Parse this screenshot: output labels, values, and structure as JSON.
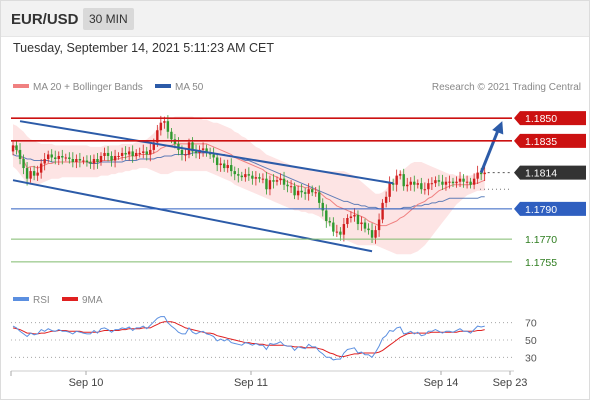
{
  "header": {
    "symbol": "EUR/USD",
    "timeframe": "30 MIN"
  },
  "timestamp": "Tuesday, September 14, 2021 5:11:23 AM CET",
  "legend": {
    "ma20": "MA 20 + Bollinger Bands",
    "ma50": "MA 50",
    "credit": "Research © 2021 Trading Central",
    "rsi": "RSI",
    "rsi_ma": "9MA"
  },
  "colors": {
    "ma20": "#f08080",
    "ma50": "#2c5ba8",
    "bollinger_fill": "#fde4e4",
    "candle_up": "#d11f1f",
    "candle_down": "#2f9a2f",
    "resistance": "#cc1111",
    "support_blue": "#2f5fc0",
    "support_green": "#7fba6c",
    "current": "#333333",
    "arrow": "#2c5ba8",
    "rsi": "#5b8fe0",
    "rsi_ma": "#e02020"
  },
  "chart_data": [
    {
      "type": "candlestick",
      "ylim": [
        1.1745,
        1.1862
      ],
      "levels": [
        {
          "value": 1.185,
          "label": "1.1850",
          "kind": "resistance"
        },
        {
          "value": 1.1835,
          "label": "1.1835",
          "kind": "resistance"
        },
        {
          "value": 1.1814,
          "label": "1.1814",
          "kind": "current"
        },
        {
          "value": 1.179,
          "label": "1.1790",
          "kind": "support"
        },
        {
          "value": 1.177,
          "label": "1.1770",
          "kind": "support-minor"
        },
        {
          "value": 1.1755,
          "label": "1.1755",
          "kind": "support-minor"
        }
      ],
      "x_ticks": [
        "Sep 10",
        "Sep 11",
        "Sep 14",
        "Sep 23"
      ],
      "closes": [
        1.1832,
        1.1829,
        1.1823,
        1.1817,
        1.181,
        1.1815,
        1.1812,
        1.1814,
        1.182,
        1.1823,
        1.1826,
        1.1824,
        1.1823,
        1.1825,
        1.1824,
        1.1824,
        1.1823,
        1.1821,
        1.1823,
        1.1822,
        1.1822,
        1.1821,
        1.182,
        1.1823,
        1.1821,
        1.1825,
        1.1827,
        1.1825,
        1.1822,
        1.1825,
        1.1825,
        1.1827,
        1.1826,
        1.1828,
        1.1825,
        1.1827,
        1.1827,
        1.1828,
        1.1826,
        1.1829,
        1.1834,
        1.1842,
        1.1847,
        1.1848,
        1.1841,
        1.1836,
        1.1833,
        1.1829,
        1.1826,
        1.1826,
        1.1834,
        1.1828,
        1.1827,
        1.1829,
        1.183,
        1.1827,
        1.1826,
        1.1824,
        1.1819,
        1.182,
        1.1817,
        1.1819,
        1.1815,
        1.1813,
        1.1812,
        1.1811,
        1.1813,
        1.1812,
        1.181,
        1.1811,
        1.181,
        1.181,
        1.1803,
        1.1809,
        1.1808,
        1.1809,
        1.181,
        1.1806,
        1.1805,
        1.1805,
        1.1799,
        1.1802,
        1.1801,
        1.18,
        1.1803,
        1.1801,
        1.1801,
        1.1794,
        1.1789,
        1.1782,
        1.1781,
        1.1775,
        1.1775,
        1.1773,
        1.178,
        1.1784,
        1.1785,
        1.1786,
        1.178,
        1.1781,
        1.1777,
        1.1776,
        1.1771,
        1.1776,
        1.1783,
        1.1794,
        1.1798,
        1.1807,
        1.1806,
        1.1812,
        1.1813,
        1.1805,
        1.1806,
        1.1808,
        1.1806,
        1.1807,
        1.1803,
        1.1803,
        1.1807,
        1.1807,
        1.1809,
        1.1808,
        1.1806,
        1.1808,
        1.1808,
        1.1807,
        1.1808,
        1.181,
        1.1808,
        1.1808,
        1.1806,
        1.181,
        1.1814,
        1.1813,
        1.1814
      ],
      "ma20": [
        1.1832,
        1.183,
        1.1826,
        1.1822,
        1.1817,
        1.1818,
        1.1818,
        1.1817,
        1.1818,
        1.1819,
        1.182,
        1.182,
        1.1821,
        1.1821,
        1.1821,
        1.1821,
        1.1821,
        1.1821,
        1.1821,
        1.1821,
        1.1821,
        1.1821,
        1.1821,
        1.1821,
        1.1821,
        1.1822,
        1.1822,
        1.1822,
        1.1822,
        1.1823,
        1.1823,
        1.1824,
        1.1824,
        1.1825,
        1.1825,
        1.1825,
        1.1826,
        1.1826,
        1.1826,
        1.1826,
        1.1827,
        1.1828,
        1.183,
        1.1831,
        1.1832,
        1.1832,
        1.1833,
        1.1833,
        1.1833,
        1.1833,
        1.1833,
        1.1833,
        1.1833,
        1.1833,
        1.1833,
        1.1833,
        1.1832,
        1.1831,
        1.183,
        1.1829,
        1.1828,
        1.1827,
        1.1826,
        1.1824,
        1.1823,
        1.1822,
        1.1821,
        1.182,
        1.1819,
        1.1818,
        1.1817,
        1.1816,
        1.1814,
        1.1813,
        1.1812,
        1.1811,
        1.181,
        1.1809,
        1.1808,
        1.1807,
        1.1806,
        1.1805,
        1.1805,
        1.1804,
        1.1804,
        1.1803,
        1.1803,
        1.1801,
        1.1799,
        1.1797,
        1.1796,
        1.1794,
        1.1792,
        1.1791,
        1.179,
        1.1789,
        1.1788,
        1.1787,
        1.1786,
        1.1785,
        1.1784,
        1.1782,
        1.1781,
        1.178,
        1.1779,
        1.1779,
        1.1779,
        1.178,
        1.1781,
        1.1782,
        1.1784,
        1.1785,
        1.1787,
        1.1789,
        1.1791,
        1.1793,
        1.1794,
        1.1795,
        1.1797,
        1.1798,
        1.18,
        1.1802,
        1.1803,
        1.1804,
        1.1805,
        1.1806,
        1.1806,
        1.1806,
        1.1806,
        1.1806,
        1.1806,
        1.1807,
        1.1807,
        1.1808,
        1.1809
      ],
      "ma50": [
        1.1826,
        1.1825,
        1.1825,
        1.1824,
        1.1823,
        1.1823,
        1.1822,
        1.1822,
        1.1822,
        1.1822,
        1.1822,
        1.1821,
        1.1821,
        1.1821,
        1.1821,
        1.1821,
        1.1821,
        1.1821,
        1.1821,
        1.1821,
        1.1821,
        1.1821,
        1.182,
        1.182,
        1.182,
        1.1821,
        1.1821,
        1.1821,
        1.1821,
        1.1821,
        1.1821,
        1.1821,
        1.1822,
        1.1822,
        1.1822,
        1.1822,
        1.1823,
        1.1823,
        1.1823,
        1.1823,
        1.1823,
        1.1824,
        1.1824,
        1.1825,
        1.1825,
        1.1825,
        1.1826,
        1.1826,
        1.1826,
        1.1826,
        1.1826,
        1.1827,
        1.1827,
        1.1827,
        1.1827,
        1.1827,
        1.1827,
        1.1827,
        1.1826,
        1.1826,
        1.1826,
        1.1825,
        1.1825,
        1.1824,
        1.1824,
        1.1823,
        1.1822,
        1.1822,
        1.1821,
        1.182,
        1.1819,
        1.1818,
        1.1817,
        1.1816,
        1.1815,
        1.1814,
        1.1813,
        1.1812,
        1.1811,
        1.181,
        1.1809,
        1.1808,
        1.1807,
        1.1806,
        1.1805,
        1.1804,
        1.1803,
        1.1802,
        1.1801,
        1.18,
        1.1799,
        1.1798,
        1.1797,
        1.1796,
        1.1795,
        1.1795,
        1.1794,
        1.1793,
        1.1793,
        1.1792,
        1.1792,
        1.1791,
        1.1791,
        1.1791,
        1.179,
        1.179,
        1.179,
        1.179,
        1.179,
        1.179,
        1.179,
        1.1791,
        1.1791,
        1.1791,
        1.1792,
        1.1792,
        1.1792,
        1.1793,
        1.1793,
        1.1794,
        1.1794,
        1.1795,
        1.1795,
        1.1796,
        1.1797,
        1.1797,
        1.1797,
        1.1797,
        1.1797,
        1.1797,
        1.1797,
        1.1797,
        1.1797,
        1.1798,
        1.1798
      ],
      "bollinger_upper": [
        1.1846,
        1.1845,
        1.1843,
        1.1841,
        1.1838,
        1.1836,
        1.1835,
        1.1834,
        1.1833,
        1.1833,
        1.1833,
        1.1833,
        1.1832,
        1.1832,
        1.1832,
        1.1832,
        1.1832,
        1.1832,
        1.1832,
        1.1832,
        1.1832,
        1.1832,
        1.1831,
        1.1831,
        1.1831,
        1.1831,
        1.1832,
        1.1832,
        1.1832,
        1.1832,
        1.1832,
        1.1833,
        1.1833,
        1.1833,
        1.1833,
        1.1834,
        1.1834,
        1.1835,
        1.1836,
        1.1838,
        1.184,
        1.1843,
        1.1846,
        1.1848,
        1.1849,
        1.185,
        1.1851,
        1.1851,
        1.1851,
        1.1851,
        1.1851,
        1.1851,
        1.185,
        1.185,
        1.1849,
        1.1849,
        1.1848,
        1.1847,
        1.1847,
        1.1846,
        1.1845,
        1.1844,
        1.1843,
        1.1841,
        1.184,
        1.1838,
        1.1837,
        1.1835,
        1.1833,
        1.1831,
        1.183,
        1.1828,
        1.1826,
        1.1825,
        1.1824,
        1.1823,
        1.1822,
        1.1821,
        1.182,
        1.1819,
        1.1818,
        1.1817,
        1.1817,
        1.1816,
        1.1816,
        1.1815,
        1.1815,
        1.1815,
        1.1815,
        1.1815,
        1.1815,
        1.1815,
        1.1815,
        1.1815,
        1.1815,
        1.1814,
        1.1813,
        1.1812,
        1.181,
        1.1808,
        1.1806,
        1.1804,
        1.1802,
        1.18,
        1.18,
        1.1801,
        1.1803,
        1.1806,
        1.1809,
        1.1812,
        1.1814,
        1.1816,
        1.1818,
        1.182,
        1.1821,
        1.1821,
        1.1821,
        1.182,
        1.1819,
        1.1818,
        1.1817,
        1.1816,
        1.1815,
        1.1814,
        1.1813,
        1.1813,
        1.1812,
        1.1812,
        1.1812,
        1.1812,
        1.1812,
        1.1813,
        1.1814,
        1.1815,
        1.1816
      ],
      "bollinger_lower": [
        1.1818,
        1.1816,
        1.1813,
        1.181,
        1.1807,
        1.1806,
        1.1806,
        1.1806,
        1.1807,
        1.1808,
        1.1809,
        1.181,
        1.181,
        1.181,
        1.1811,
        1.1811,
        1.1811,
        1.1811,
        1.1811,
        1.1811,
        1.1811,
        1.1811,
        1.1811,
        1.1811,
        1.1811,
        1.1812,
        1.1812,
        1.1812,
        1.1813,
        1.1813,
        1.1814,
        1.1814,
        1.1815,
        1.1815,
        1.1816,
        1.1816,
        1.1817,
        1.1817,
        1.1817,
        1.1816,
        1.1815,
        1.1814,
        1.1813,
        1.1813,
        1.1813,
        1.1814,
        1.1815,
        1.1815,
        1.1815,
        1.1815,
        1.1815,
        1.1815,
        1.1815,
        1.1815,
        1.1815,
        1.1815,
        1.1814,
        1.1813,
        1.1812,
        1.1811,
        1.181,
        1.1809,
        1.1808,
        1.1806,
        1.1805,
        1.1804,
        1.1803,
        1.1802,
        1.1801,
        1.18,
        1.1799,
        1.1798,
        1.1797,
        1.1796,
        1.1795,
        1.1794,
        1.1793,
        1.1792,
        1.1791,
        1.179,
        1.1789,
        1.1789,
        1.1788,
        1.1788,
        1.1787,
        1.1787,
        1.1786,
        1.1785,
        1.1783,
        1.1781,
        1.1779,
        1.1777,
        1.1774,
        1.1772,
        1.177,
        1.1769,
        1.1768,
        1.1767,
        1.1766,
        1.1766,
        1.1766,
        1.1766,
        1.1766,
        1.1766,
        1.1765,
        1.1764,
        1.1763,
        1.1762,
        1.1761,
        1.176,
        1.176,
        1.176,
        1.176,
        1.176,
        1.1761,
        1.1762,
        1.1764,
        1.1766,
        1.1769,
        1.1772,
        1.1775,
        1.1778,
        1.1781,
        1.1784,
        1.1787,
        1.179,
        1.1793,
        1.1795,
        1.1797,
        1.1799,
        1.18,
        1.1801,
        1.1802,
        1.1802,
        1.1802
      ],
      "channel_upper": [
        [
          1.1848,
          2
        ],
        [
          1.1807,
          108
        ]
      ],
      "channel_lower": [
        [
          1.1809,
          0
        ],
        [
          1.1762,
          102
        ]
      ],
      "projection_arrow": [
        [
          1.1814,
          133
        ],
        [
          1.1848,
          139
        ]
      ]
    },
    {
      "type": "line",
      "title": "RSI",
      "ylim": [
        20,
        80
      ],
      "y_ticks": [
        70,
        50,
        30
      ],
      "series": [
        {
          "name": "RSI",
          "values": [
            66,
            64,
            60,
            57,
            54,
            58,
            56,
            57,
            62,
            60,
            63,
            61,
            60,
            62,
            60,
            60,
            59,
            57,
            60,
            59,
            58,
            57,
            57,
            61,
            58,
            63,
            64,
            62,
            59,
            62,
            62,
            64,
            63,
            65,
            61,
            64,
            64,
            66,
            63,
            67,
            71,
            75,
            77,
            77,
            70,
            66,
            63,
            59,
            57,
            57,
            64,
            59,
            57,
            59,
            60,
            57,
            56,
            54,
            49,
            51,
            49,
            51,
            47,
            46,
            45,
            44,
            47,
            46,
            44,
            46,
            44,
            44,
            39,
            46,
            45,
            46,
            48,
            44,
            43,
            43,
            38,
            42,
            41,
            40,
            45,
            42,
            42,
            37,
            34,
            30,
            30,
            27,
            28,
            28,
            35,
            39,
            40,
            41,
            35,
            36,
            33,
            33,
            30,
            36,
            43,
            52,
            55,
            61,
            60,
            64,
            65,
            57,
            58,
            60,
            57,
            59,
            55,
            56,
            60,
            60,
            62,
            60,
            58,
            60,
            60,
            59,
            61,
            63,
            60,
            60,
            58,
            62,
            66,
            65,
            66
          ]
        },
        {
          "name": "9MA",
          "values": [
            64,
            63,
            62,
            60,
            58,
            58,
            57,
            57,
            58,
            58,
            59,
            60,
            60,
            61,
            61,
            61,
            60,
            60,
            60,
            60,
            59,
            59,
            59,
            59,
            59,
            60,
            61,
            61,
            61,
            61,
            61,
            62,
            62,
            63,
            63,
            63,
            63,
            64,
            64,
            64,
            66,
            68,
            70,
            71,
            71,
            71,
            70,
            68,
            66,
            64,
            63,
            62,
            61,
            60,
            59,
            58,
            58,
            57,
            55,
            54,
            53,
            52,
            51,
            50,
            49,
            48,
            47,
            47,
            46,
            46,
            45,
            45,
            44,
            44,
            44,
            44,
            44,
            44,
            43,
            43,
            42,
            42,
            42,
            41,
            41,
            41,
            41,
            40,
            39,
            37,
            35,
            34,
            32,
            31,
            31,
            32,
            33,
            34,
            34,
            35,
            35,
            35,
            35,
            35,
            36,
            38,
            41,
            44,
            47,
            50,
            53,
            55,
            57,
            58,
            58,
            58,
            58,
            58,
            58,
            59,
            59,
            59,
            59,
            59,
            59,
            59,
            59,
            60,
            60,
            60,
            60,
            60,
            61,
            61,
            62
          ]
        }
      ]
    }
  ]
}
